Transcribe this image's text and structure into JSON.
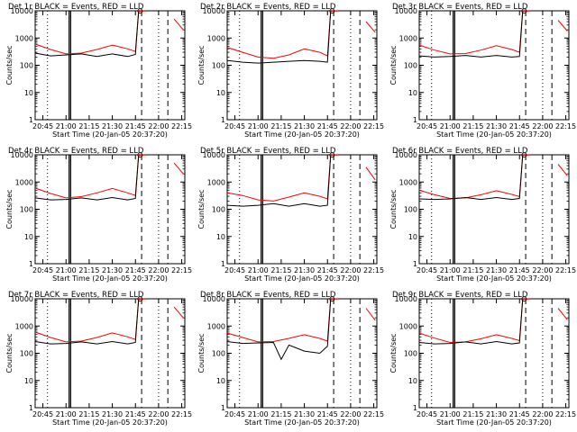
{
  "chart_data": [
    {
      "type": "line",
      "title": "Det 1r BLACK = Events, RED = LLD",
      "xlabel": "Start Time (20-Jan-05 20:37:20)",
      "ylabel": "Counts/sec",
      "yscale": "log",
      "ylim": [
        1,
        10000
      ],
      "ytick_labels": [
        "1",
        "10",
        "100",
        "1000",
        "10000"
      ],
      "xtick_labels": [
        "20:45",
        "21:00",
        "21:15",
        "21:30",
        "21:45",
        "22:00",
        "22:15"
      ],
      "series": [
        {
          "x": [
            "20:40",
            "20:50",
            "21:00",
            "21:10",
            "21:20",
            "21:30",
            "21:40",
            "21:45",
            "21:47",
            "21:49",
            "21:52"
          ],
          "values": [
            600,
            380,
            260,
            280,
            380,
            550,
            400,
            320,
            9500,
            9800,
            9800
          ],
          "color": "#ff0000"
        },
        {
          "x": [
            "20:40",
            "20:50",
            "21:00",
            "21:10",
            "21:20",
            "21:30",
            "21:40",
            "21:45",
            "21:47"
          ],
          "values": [
            280,
            220,
            240,
            260,
            210,
            260,
            210,
            250,
            9000
          ],
          "color": "#000000"
        },
        {
          "x": [
            "22:10",
            "22:16"
          ],
          "values": [
            5000,
            2000
          ],
          "color": "#ff0000"
        }
      ]
    },
    {
      "type": "line",
      "title": "Det 2r BLACK = Events, RED = LLD",
      "xlabel": "Start Time (20-Jan-05 20:37:20)",
      "ylabel": "Counts/sec",
      "yscale": "log",
      "ylim": [
        1,
        10000
      ],
      "ytick_labels": [
        "1",
        "10",
        "100",
        "1000",
        "10000"
      ],
      "xtick_labels": [
        "20:45",
        "21:00",
        "21:15",
        "21:30",
        "21:45",
        "22:00",
        "22:15"
      ],
      "series": [
        {
          "x": [
            "20:40",
            "20:50",
            "21:00",
            "21:10",
            "21:20",
            "21:30",
            "21:40",
            "21:45",
            "21:47",
            "21:49",
            "21:52"
          ],
          "values": [
            450,
            300,
            200,
            180,
            240,
            400,
            300,
            220,
            9500,
            9800,
            9800
          ],
          "color": "#ff0000"
        },
        {
          "x": [
            "20:40",
            "20:50",
            "21:00",
            "21:10",
            "21:20",
            "21:30",
            "21:40",
            "21:45",
            "21:47"
          ],
          "values": [
            150,
            130,
            120,
            130,
            140,
            150,
            140,
            130,
            9000
          ],
          "color": "#000000"
        },
        {
          "x": [
            "22:10",
            "22:16"
          ],
          "values": [
            4000,
            1600
          ],
          "color": "#ff0000"
        }
      ]
    },
    {
      "type": "line",
      "title": "Det 3r BLACK = Events, RED = LLD",
      "xlabel": "Start Time (20-Jan-05 20:37:20)",
      "ylabel": "Counts/sec",
      "yscale": "log",
      "ylim": [
        1,
        10000
      ],
      "ytick_labels": [
        "1",
        "10",
        "100",
        "1000",
        "10000"
      ],
      "xtick_labels": [
        "20:45",
        "21:00",
        "21:15",
        "21:30",
        "21:45",
        "22:00",
        "22:15"
      ],
      "series": [
        {
          "x": [
            "20:40",
            "20:50",
            "21:00",
            "21:10",
            "21:20",
            "21:30",
            "21:40",
            "21:45",
            "21:47",
            "21:49",
            "21:52"
          ],
          "values": [
            550,
            360,
            260,
            270,
            360,
            520,
            380,
            300,
            9500,
            9800,
            9800
          ],
          "color": "#ff0000"
        },
        {
          "x": [
            "20:40",
            "20:50",
            "21:00",
            "21:10",
            "21:20",
            "21:30",
            "21:40",
            "21:45",
            "21:47"
          ],
          "values": [
            220,
            200,
            210,
            230,
            200,
            230,
            200,
            210,
            9000
          ],
          "color": "#000000"
        },
        {
          "x": [
            "22:10",
            "22:16"
          ],
          "values": [
            4500,
            1800
          ],
          "color": "#ff0000"
        }
      ]
    },
    {
      "type": "line",
      "title": "Det 4r BLACK = Events, RED = LLD",
      "xlabel": "Start Time (20-Jan-05 20:37:20)",
      "ylabel": "Counts/sec",
      "yscale": "log",
      "ylim": [
        1,
        10000
      ],
      "ytick_labels": [
        "1",
        "10",
        "100",
        "1000",
        "10000"
      ],
      "xtick_labels": [
        "20:45",
        "21:00",
        "21:15",
        "21:30",
        "21:45",
        "22:00",
        "22:15"
      ],
      "series": [
        {
          "x": [
            "20:40",
            "20:50",
            "21:00",
            "21:10",
            "21:20",
            "21:30",
            "21:40",
            "21:45",
            "21:47",
            "21:49",
            "21:52"
          ],
          "values": [
            600,
            380,
            260,
            290,
            400,
            580,
            400,
            320,
            9500,
            9800,
            9800
          ],
          "color": "#ff0000"
        },
        {
          "x": [
            "20:40",
            "20:50",
            "21:00",
            "21:10",
            "21:20",
            "21:30",
            "21:40",
            "21:45",
            "21:47"
          ],
          "values": [
            260,
            220,
            230,
            260,
            220,
            270,
            220,
            250,
            9000
          ],
          "color": "#000000"
        },
        {
          "x": [
            "22:10",
            "22:16"
          ],
          "values": [
            5000,
            2000
          ],
          "color": "#ff0000"
        }
      ]
    },
    {
      "type": "line",
      "title": "Det 5r BLACK = Events, RED = LLD",
      "xlabel": "Start Time (20-Jan-05 20:37:20)",
      "ylabel": "Counts/sec",
      "yscale": "log",
      "ylim": [
        1,
        10000
      ],
      "ytick_labels": [
        "1",
        "10",
        "100",
        "1000",
        "10000"
      ],
      "xtick_labels": [
        "20:45",
        "21:00",
        "21:15",
        "21:30",
        "21:45",
        "22:00",
        "22:15"
      ],
      "series": [
        {
          "x": [
            "20:40",
            "20:50",
            "21:00",
            "21:10",
            "21:20",
            "21:30",
            "21:40",
            "21:45",
            "21:47",
            "21:49",
            "21:52"
          ],
          "values": [
            400,
            320,
            220,
            200,
            280,
            400,
            300,
            240,
            9500,
            9800,
            9800
          ],
          "color": "#ff0000"
        },
        {
          "x": [
            "20:40",
            "20:50",
            "21:00",
            "21:10",
            "21:20",
            "21:30",
            "21:40",
            "21:45",
            "21:47"
          ],
          "values": [
            140,
            130,
            140,
            160,
            130,
            160,
            130,
            140,
            9000
          ],
          "color": "#000000"
        },
        {
          "x": [
            "22:10",
            "22:16"
          ],
          "values": [
            3500,
            1200
          ],
          "color": "#ff0000"
        }
      ]
    },
    {
      "type": "line",
      "title": "Det 6r BLACK = Events, RED = LLD",
      "xlabel": "Start Time (20-Jan-05 20:37:20)",
      "ylabel": "Counts/sec",
      "yscale": "log",
      "ylim": [
        1,
        10000
      ],
      "ytick_labels": [
        "1",
        "10",
        "100",
        "1000",
        "10000"
      ],
      "xtick_labels": [
        "20:45",
        "21:00",
        "21:15",
        "21:30",
        "21:45",
        "22:00",
        "22:15"
      ],
      "series": [
        {
          "x": [
            "20:40",
            "20:50",
            "21:00",
            "21:10",
            "21:20",
            "21:30",
            "21:40",
            "21:45",
            "21:47",
            "21:49",
            "21:52"
          ],
          "values": [
            500,
            340,
            250,
            260,
            340,
            480,
            350,
            290,
            9500,
            9800,
            9800
          ],
          "color": "#ff0000"
        },
        {
          "x": [
            "20:40",
            "20:50",
            "21:00",
            "21:10",
            "21:20",
            "21:30",
            "21:40",
            "21:45",
            "21:47"
          ],
          "values": [
            240,
            230,
            240,
            270,
            230,
            270,
            230,
            250,
            9000
          ],
          "color": "#000000"
        },
        {
          "x": [
            "22:10",
            "22:16"
          ],
          "values": [
            4500,
            1700
          ],
          "color": "#ff0000"
        }
      ]
    },
    {
      "type": "line",
      "title": "Det 7r BLACK = Events, RED = LLD",
      "xlabel": "Start Time (20-Jan-05 20:37:20)",
      "ylabel": "Counts/sec",
      "yscale": "log",
      "ylim": [
        1,
        10000
      ],
      "ytick_labels": [
        "1",
        "10",
        "100",
        "1000",
        "10000"
      ],
      "xtick_labels": [
        "20:45",
        "21:00",
        "21:15",
        "21:30",
        "21:45",
        "22:00",
        "22:15"
      ],
      "series": [
        {
          "x": [
            "20:40",
            "20:50",
            "21:00",
            "21:10",
            "21:20",
            "21:30",
            "21:40",
            "21:45",
            "21:47",
            "21:49",
            "21:52"
          ],
          "values": [
            600,
            380,
            260,
            280,
            380,
            560,
            400,
            320,
            9500,
            9800,
            9800
          ],
          "color": "#ff0000"
        },
        {
          "x": [
            "20:40",
            "20:50",
            "21:00",
            "21:10",
            "21:20",
            "21:30",
            "21:40",
            "21:45",
            "21:47"
          ],
          "values": [
            270,
            220,
            230,
            260,
            220,
            270,
            220,
            250,
            9000
          ],
          "color": "#000000"
        },
        {
          "x": [
            "22:10",
            "22:16"
          ],
          "values": [
            5000,
            2000
          ],
          "color": "#ff0000"
        }
      ]
    },
    {
      "type": "line",
      "title": "Det 8r BLACK = Events, RED = LLD",
      "xlabel": "Start Time (20-Jan-05 20:37:20)",
      "ylabel": "Counts/sec",
      "yscale": "log",
      "ylim": [
        1,
        10000
      ],
      "ytick_labels": [
        "1",
        "10",
        "100",
        "1000",
        "10000"
      ],
      "xtick_labels": [
        "20:45",
        "21:00",
        "21:15",
        "21:30",
        "21:45",
        "22:00",
        "22:15"
      ],
      "series": [
        {
          "x": [
            "20:40",
            "20:50",
            "21:00",
            "21:10",
            "21:20",
            "21:30",
            "21:40",
            "21:45",
            "21:47",
            "21:49",
            "21:52"
          ],
          "values": [
            550,
            380,
            260,
            270,
            350,
            480,
            350,
            280,
            9500,
            9800,
            9800
          ],
          "color": "#ff0000"
        },
        {
          "x": [
            "20:40",
            "20:50",
            "21:00",
            "21:10",
            "21:15",
            "21:20",
            "21:30",
            "21:40",
            "21:45",
            "21:47"
          ],
          "values": [
            270,
            230,
            240,
            250,
            60,
            200,
            120,
            100,
            180,
            9000
          ],
          "color": "#000000"
        },
        {
          "x": [
            "22:10",
            "22:16"
          ],
          "values": [
            4500,
            1600
          ],
          "color": "#ff0000"
        }
      ]
    },
    {
      "type": "line",
      "title": "Det 9r BLACK = Events, RED = LLD",
      "xlabel": "Start Time (20-Jan-05 20:37:20)",
      "ylabel": "Counts/sec",
      "yscale": "log",
      "ylim": [
        1,
        10000
      ],
      "ytick_labels": [
        "1",
        "10",
        "100",
        "1000",
        "10000"
      ],
      "xtick_labels": [
        "20:45",
        "21:00",
        "21:15",
        "21:30",
        "21:45",
        "22:00",
        "22:15"
      ],
      "series": [
        {
          "x": [
            "20:40",
            "20:50",
            "21:00",
            "21:10",
            "21:20",
            "21:30",
            "21:40",
            "21:45",
            "21:47",
            "21:49",
            "21:52"
          ],
          "values": [
            550,
            360,
            250,
            260,
            340,
            480,
            350,
            290,
            9500,
            9800,
            9800
          ],
          "color": "#ff0000"
        },
        {
          "x": [
            "20:40",
            "20:50",
            "21:00",
            "21:10",
            "21:20",
            "21:30",
            "21:40",
            "21:45",
            "21:47"
          ],
          "values": [
            250,
            220,
            230,
            260,
            220,
            270,
            220,
            240,
            9000
          ],
          "color": "#000000"
        },
        {
          "x": [
            "22:10",
            "22:16"
          ],
          "values": [
            4500,
            1700
          ],
          "color": "#ff0000"
        }
      ]
    }
  ],
  "time_markers": {
    "solid": [
      "21:02",
      "21:03"
    ],
    "dotted": [
      "20:48",
      "22:00"
    ],
    "dashed": [
      "21:49",
      "22:06"
    ]
  }
}
